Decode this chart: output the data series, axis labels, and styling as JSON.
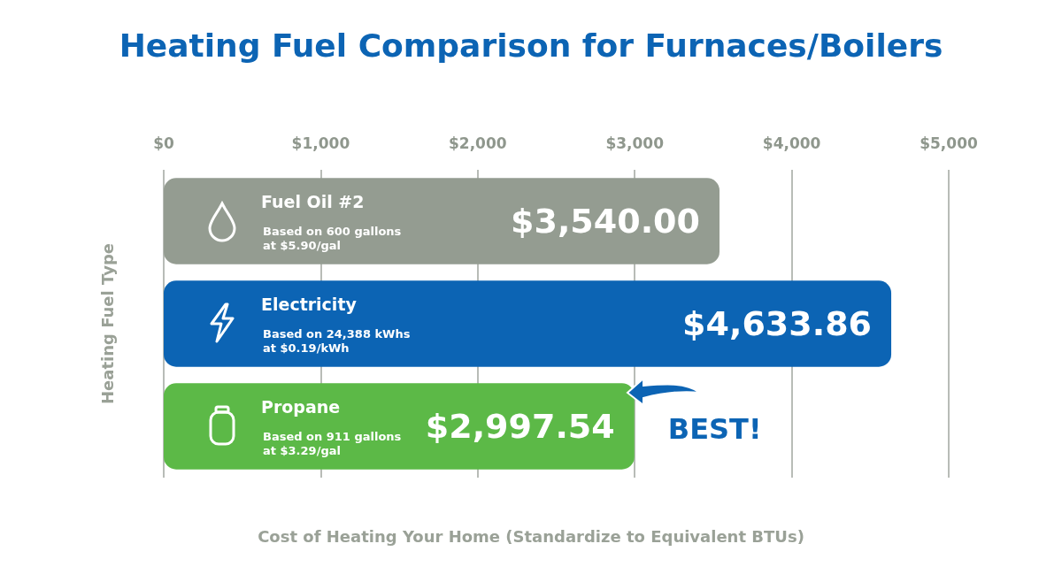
{
  "chart_data": {
    "type": "bar",
    "orientation": "horizontal",
    "title": "Heating Fuel Comparison for Furnaces/Boilers",
    "xlabel": "Cost of Heating Your Home (Standardize to Equivalent BTUs)",
    "ylabel": "Heating Fuel Type",
    "categories": [
      "Fuel Oil #2",
      "Electricity",
      "Propane"
    ],
    "values": [
      3540,
      4633.86,
      2997.54
    ],
    "colors": [
      "#949c91",
      "#0c64b4",
      "#5cb947"
    ],
    "value_labels": [
      "$3,540.00",
      "$4,633.86",
      "$2,997.54"
    ],
    "xlim": [
      0,
      5000
    ],
    "xticks": [
      {
        "value": 0,
        "label": "$0"
      },
      {
        "value": 1000,
        "label": "$1,000"
      },
      {
        "value": 2000,
        "label": "$2,000"
      },
      {
        "value": 3000,
        "label": "$3,000"
      },
      {
        "value": 4000,
        "label": "$4,000"
      },
      {
        "value": 5000,
        "label": "$5,000"
      }
    ],
    "grid": "x",
    "tick_labels": "x",
    "annotations": [
      "Based on 600 gallons\nat $5.90/gal",
      "Based on 24,388 kWhs\nat $0.19/kWh",
      "Based on 911 gallons\nat $3.29/gal",
      "BEST!"
    ]
  }
}
